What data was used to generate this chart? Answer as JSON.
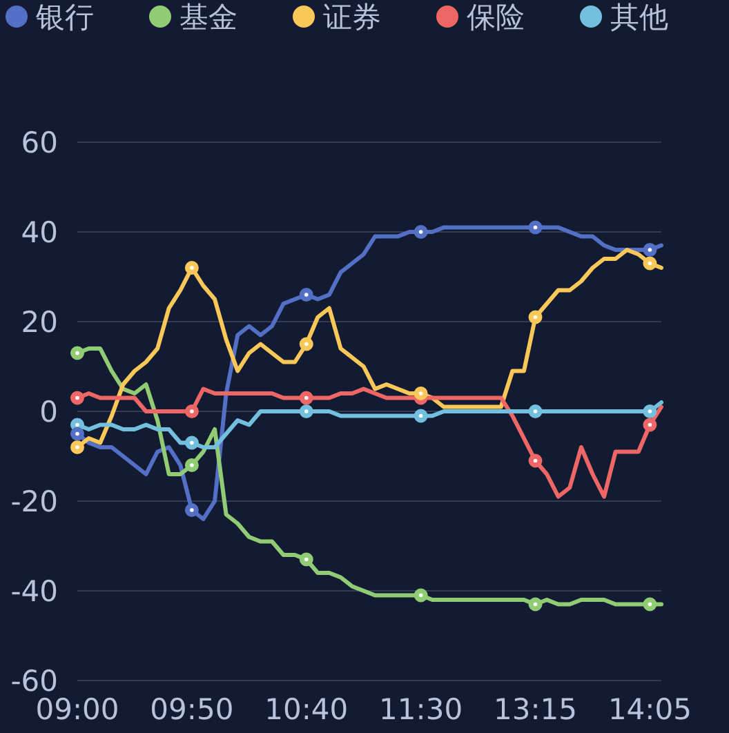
{
  "chart_data": {
    "type": "line",
    "categories": [
      "09:00",
      null,
      null,
      null,
      null,
      null,
      null,
      null,
      null,
      null,
      "09:50",
      null,
      null,
      null,
      null,
      null,
      null,
      null,
      null,
      null,
      "10:40",
      null,
      null,
      null,
      null,
      null,
      null,
      null,
      null,
      null,
      "11:30",
      null,
      null,
      null,
      null,
      null,
      null,
      null,
      null,
      null,
      "13:15",
      null,
      null,
      null,
      null,
      null,
      null,
      null,
      null,
      null,
      "14:05",
      null
    ],
    "series": [
      {
        "name": "银行",
        "color": "#5470c6",
        "values": [
          -5,
          -7,
          -8,
          -8,
          -10,
          -12,
          -14,
          -9,
          -8,
          -12,
          -22,
          -24,
          -20,
          4,
          17,
          19,
          17,
          19,
          24,
          25,
          26,
          25,
          26,
          31,
          33,
          35,
          39,
          39,
          39,
          40,
          40,
          40,
          41,
          41,
          41,
          41,
          41,
          41,
          41,
          41,
          41,
          41,
          41,
          40,
          39,
          39,
          37,
          36,
          36,
          36,
          36,
          37
        ]
      },
      {
        "name": "基金",
        "color": "#91cc75",
        "values": [
          13,
          14,
          14,
          9,
          5,
          4,
          6,
          -2,
          -14,
          -14,
          -12,
          -9,
          -4,
          -23,
          -25,
          -28,
          -29,
          -29,
          -32,
          -32,
          -33,
          -36,
          -36,
          -37,
          -39,
          -40,
          -41,
          -41,
          -41,
          -41,
          -41,
          -42,
          -42,
          -42,
          -42,
          -42,
          -42,
          -42,
          -42,
          -42,
          -43,
          -42,
          -43,
          -43,
          -42,
          -42,
          -42,
          -43,
          -43,
          -43,
          -43,
          -43
        ]
      },
      {
        "name": "证券",
        "color": "#fac858",
        "values": [
          -8,
          -6,
          -7,
          -1,
          6,
          9,
          11,
          14,
          23,
          27,
          32,
          28,
          25,
          16,
          9,
          13,
          15,
          13,
          11,
          11,
          15,
          21,
          23,
          14,
          12,
          10,
          5,
          6,
          5,
          4,
          4,
          3,
          1,
          1,
          1,
          1,
          1,
          1,
          9,
          9,
          21,
          24,
          27,
          27,
          29,
          32,
          34,
          34,
          36,
          35,
          33,
          32
        ]
      },
      {
        "name": "保险",
        "color": "#ee6666",
        "values": [
          3,
          4,
          3,
          3,
          3,
          3,
          0,
          0,
          0,
          0,
          0,
          5,
          4,
          4,
          4,
          4,
          4,
          4,
          3,
          3,
          3,
          3,
          3,
          4,
          4,
          5,
          4,
          3,
          3,
          3,
          3,
          3,
          3,
          3,
          3,
          3,
          3,
          3,
          -1,
          -6,
          -11,
          -14,
          -19,
          -17,
          -8,
          -14,
          -19,
          -9,
          -9,
          -9,
          -3,
          1
        ]
      },
      {
        "name": "其他",
        "color": "#73c0de",
        "values": [
          -3,
          -4,
          -3,
          -3,
          -4,
          -4,
          -3,
          -4,
          -4,
          -7,
          -7,
          -8,
          -8,
          -5,
          -2,
          -3,
          0,
          0,
          0,
          0,
          0,
          0,
          0,
          -1,
          -1,
          -1,
          -1,
          -1,
          -1,
          -1,
          -1,
          -1,
          0,
          0,
          0,
          0,
          0,
          0,
          0,
          0,
          0,
          0,
          0,
          0,
          0,
          0,
          0,
          0,
          0,
          0,
          0,
          2
        ]
      },
      {
        "type": "scatter",
        "color": "#5470c6",
        "x": [
          "09:00",
          "09:50",
          "10:40",
          "11:30",
          "13:15",
          "14:05"
        ],
        "values": [
          -5,
          -22,
          26,
          40,
          41,
          36
        ]
      },
      {
        "type": "scatter",
        "color": "#91cc75",
        "x": [
          "09:00",
          "09:50",
          "10:40",
          "11:30",
          "13:15",
          "14:05"
        ],
        "values": [
          13,
          -12,
          -33,
          -41,
          -43,
          -43
        ]
      },
      {
        "type": "scatter",
        "color": "#fac858",
        "x": [
          "09:00",
          "09:50",
          "10:40",
          "11:30",
          "13:15",
          "14:05"
        ],
        "values": [
          -8,
          32,
          15,
          4,
          21,
          33
        ]
      },
      {
        "type": "scatter",
        "color": "#ee6666",
        "x": [
          "09:00",
          "09:50",
          "10:40",
          "11:30",
          "13:15",
          "14:05"
        ],
        "values": [
          3,
          0,
          3,
          3,
          -11,
          -3
        ]
      },
      {
        "type": "scatter",
        "color": "#73c0de",
        "x": [
          "09:00",
          "09:50",
          "10:40",
          "11:30",
          "13:15",
          "14:05"
        ],
        "values": [
          -3,
          -7,
          0,
          -1,
          0,
          0
        ]
      }
    ],
    "ylim": [
      -60,
      60
    ],
    "yticks": [
      -60,
      -40,
      -20,
      0,
      20,
      40,
      60
    ],
    "grid": "y",
    "legend": "top",
    "line_style": "solid"
  }
}
